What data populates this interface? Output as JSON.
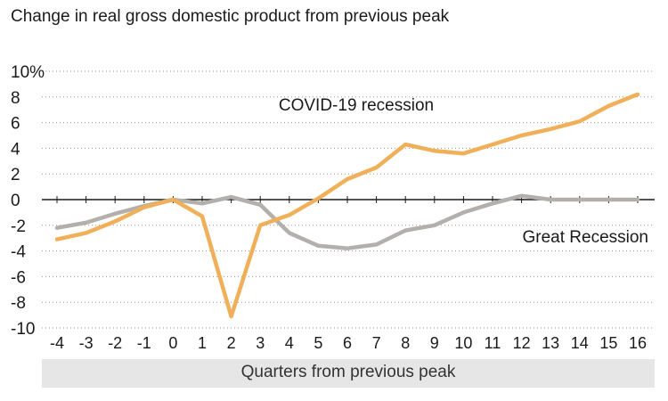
{
  "title": "Change in real gross domestic product from previous peak",
  "chart_data": {
    "type": "line",
    "title": "Change in real gross domestic product from previous peak",
    "xlabel": "Quarters from previous peak",
    "ylabel": "",
    "x": [
      -4,
      -3,
      -2,
      -1,
      0,
      1,
      2,
      3,
      4,
      5,
      6,
      7,
      8,
      9,
      10,
      11,
      12,
      13,
      14,
      15,
      16
    ],
    "x_tick_labels": [
      "-4",
      "-3",
      "-2",
      "-1",
      "0",
      "1",
      "2",
      "3",
      "4",
      "5",
      "6",
      "7",
      "8",
      "9",
      "10",
      "11",
      "12",
      "13",
      "14",
      "15",
      "16"
    ],
    "ylim": [
      -10,
      10
    ],
    "y_ticks": [
      10,
      8,
      6,
      4,
      2,
      0,
      -2,
      -4,
      -6,
      -8,
      -10
    ],
    "y_tick_labels": [
      "10%",
      "8",
      "6",
      "4",
      "2",
      "0",
      "-2",
      "-4",
      "-6",
      "-8",
      "-10"
    ],
    "grid": "horizontal dotted",
    "series": [
      {
        "name": "COVID-19 recession",
        "color": "#f0b05a",
        "values": [
          -3.1,
          -2.6,
          -1.7,
          -0.6,
          0.0,
          -1.3,
          -9.1,
          -2.0,
          -1.2,
          0.1,
          1.6,
          2.5,
          4.3,
          3.8,
          3.6,
          4.3,
          5.0,
          5.5,
          6.1,
          7.3,
          8.2
        ]
      },
      {
        "name": "Great Recession",
        "color": "#b3b0ab",
        "values": [
          -2.2,
          -1.8,
          -1.1,
          -0.5,
          0.0,
          -0.3,
          0.2,
          -0.4,
          -2.6,
          -3.6,
          -3.8,
          -3.5,
          -2.4,
          -2.0,
          -1.0,
          -0.3,
          0.3,
          0.0,
          0.0,
          0.0,
          0.0
        ]
      }
    ],
    "annotations": [
      {
        "text": "COVID-19 recession",
        "series": "COVID-19 recession"
      },
      {
        "text": "Great Recession",
        "series": "Great Recession"
      }
    ]
  }
}
